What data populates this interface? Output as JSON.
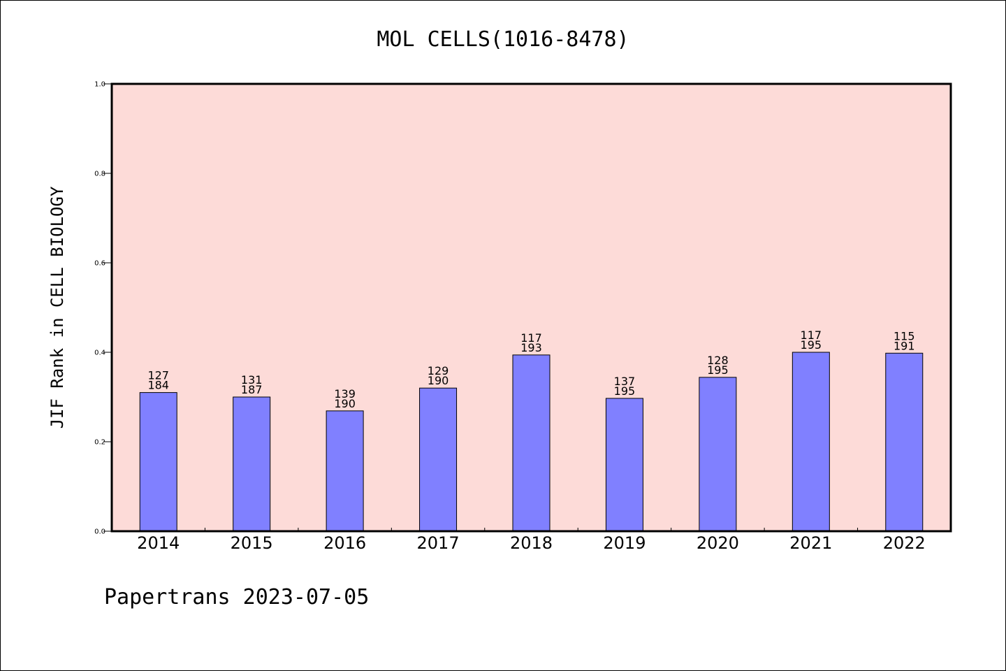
{
  "chart_data": {
    "type": "bar",
    "title": "MOL CELLS(1016-8478)",
    "ylabel": "JIF Rank in CELL BIOLOGY",
    "xlabel": "",
    "ylim": [
      0.0,
      1.0
    ],
    "yticks": [
      "0.0",
      "0.2",
      "0.4",
      "0.6",
      "0.8",
      "1.0"
    ],
    "categories": [
      "2014",
      "2015",
      "2016",
      "2017",
      "2018",
      "2019",
      "2020",
      "2021",
      "2022"
    ],
    "values": [
      0.31,
      0.3,
      0.269,
      0.32,
      0.394,
      0.297,
      0.344,
      0.4,
      0.398
    ],
    "rank": [
      "127",
      "131",
      "139",
      "129",
      "117",
      "137",
      "128",
      "117",
      "115"
    ],
    "total": [
      "184",
      "187",
      "190",
      "190",
      "193",
      "195",
      "195",
      "195",
      "191"
    ],
    "grid": false,
    "legend": "none",
    "colors": {
      "plot_bg": "#fddbd8",
      "bar": "#8080ff",
      "bar_edge": "#000000"
    }
  },
  "footer": "Papertrans 2023-07-05"
}
